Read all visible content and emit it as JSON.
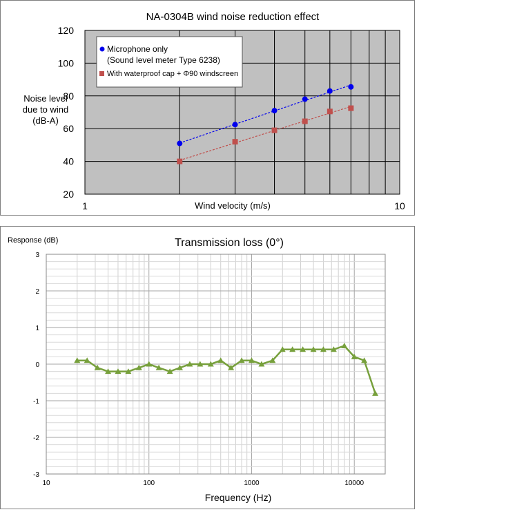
{
  "chart_data": [
    {
      "type": "scatter",
      "title": "NA-0304B wind noise reduction effect",
      "xlabel": "Wind velocity (m/s)",
      "ylabel": [
        "Noise level",
        "due to wind",
        "(dB-A)"
      ],
      "x_scale": "log",
      "xlim": [
        1,
        10
      ],
      "ylim": [
        20,
        120
      ],
      "x_ticks": [
        "1",
        "10"
      ],
      "y_ticks": [
        "20",
        "40",
        "60",
        "80",
        "100",
        "120"
      ],
      "grid": true,
      "plot_background": "#c0c0c0",
      "legend_position": "top-left",
      "series": [
        {
          "name": "Microphone only",
          "name_line2": "(Sound level meter Type 6238)",
          "color": "#0000ee",
          "marker": "circle",
          "trendline": "dashed",
          "x": [
            2,
            3,
            4,
            5,
            6,
            7
          ],
          "y": [
            51,
            62.5,
            71,
            78,
            83,
            85.5
          ]
        },
        {
          "name": "With waterproof cap + Φ90 windscreen",
          "color": "#c0504d",
          "marker": "square",
          "trendline": "dashed",
          "x": [
            2,
            3,
            4,
            5,
            6,
            7
          ],
          "y": [
            40,
            52,
            59,
            64.5,
            70.5,
            72.5
          ]
        }
      ]
    },
    {
      "type": "line",
      "title": "Transmission loss (0°)",
      "xlabel": "Frequency (Hz)",
      "ylabel": "Response (dB)",
      "x_scale": "log",
      "xlim": [
        10,
        20000
      ],
      "ylim": [
        -3,
        3
      ],
      "x_ticks": [
        "10",
        "100",
        "1000",
        "10000"
      ],
      "y_ticks": [
        "-3",
        "-2",
        "-1",
        "0",
        "1",
        "2",
        "3"
      ],
      "grid": true,
      "legend_position": "none",
      "series": [
        {
          "color": "#77a03c",
          "marker": "triangle",
          "x": [
            20,
            25,
            31.5,
            40,
            50,
            63,
            80,
            100,
            125,
            160,
            200,
            250,
            315,
            400,
            500,
            630,
            800,
            1000,
            1250,
            1600,
            2000,
            2500,
            3150,
            4000,
            5000,
            6300,
            8000,
            10000,
            12500,
            16000
          ],
          "y": [
            0.1,
            0.1,
            -0.1,
            -0.2,
            -0.2,
            -0.2,
            -0.1,
            0.0,
            -0.1,
            -0.2,
            -0.1,
            0.0,
            0.0,
            0.0,
            0.1,
            -0.1,
            0.1,
            0.1,
            0.0,
            0.1,
            0.4,
            0.4,
            0.4,
            0.4,
            0.4,
            0.4,
            0.5,
            0.2,
            0.1,
            -0.8
          ]
        }
      ]
    }
  ]
}
